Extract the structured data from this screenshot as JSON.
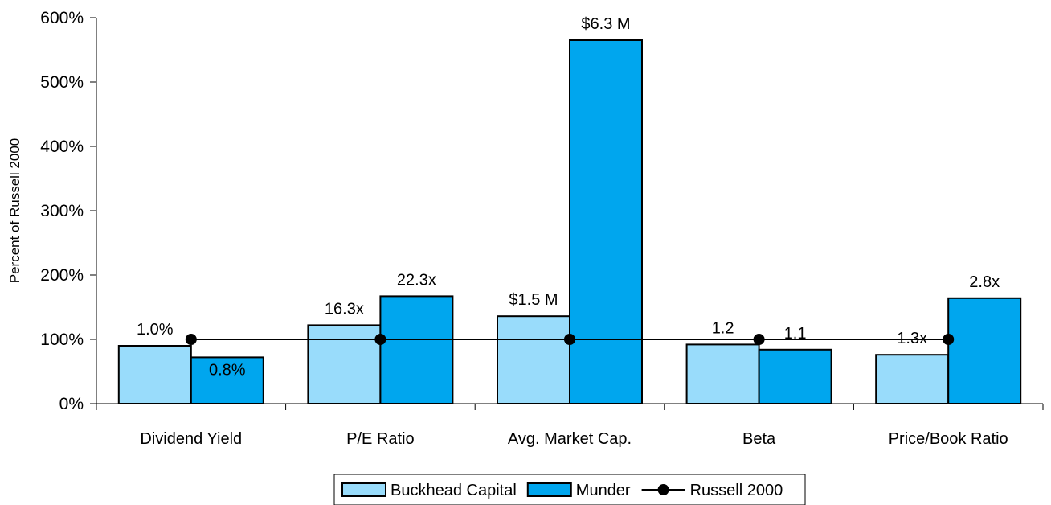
{
  "chart_data": {
    "type": "bar",
    "title": "",
    "xlabel": "",
    "ylabel": "Percent of Russell 2000",
    "ylim": [
      0,
      600
    ],
    "yticks": [
      0,
      100,
      200,
      300,
      400,
      500,
      600
    ],
    "ytick_labels": [
      "0%",
      "100%",
      "200%",
      "300%",
      "400%",
      "500%",
      "600%"
    ],
    "grid": false,
    "legend_position": "bottom-center",
    "categories": [
      "Dividend Yield",
      "P/E Ratio",
      "Avg. Market Cap.",
      "Beta",
      "Price/Book Ratio"
    ],
    "series": [
      {
        "name": "Buckhead Capital",
        "kind": "bar",
        "color": "#99dcfb",
        "values": [
          90,
          122,
          136,
          92,
          76
        ],
        "data_labels": [
          "1.0%",
          "16.3x",
          "$1.5 M",
          "1.2",
          "1.3x"
        ]
      },
      {
        "name": "Munder",
        "kind": "bar",
        "color": "#00a6ee",
        "values": [
          72,
          167,
          565,
          84,
          164
        ],
        "data_labels": [
          "0.8%",
          "22.3x",
          "$6.3 M",
          "1.1",
          "2.8x"
        ]
      },
      {
        "name": "Russell 2000",
        "kind": "line",
        "color": "#000000",
        "values": [
          100,
          100,
          100,
          100,
          100
        ]
      }
    ]
  }
}
